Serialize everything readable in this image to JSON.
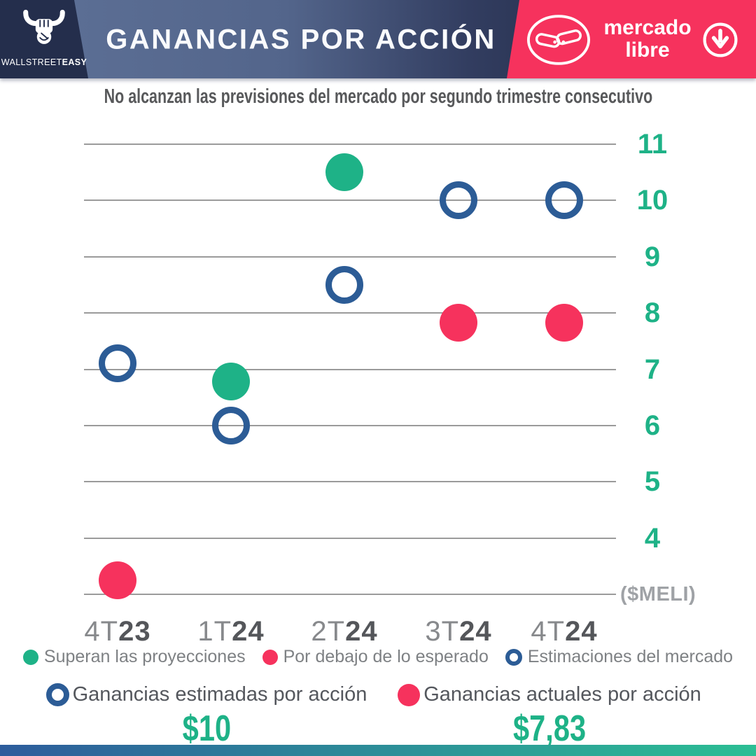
{
  "colors": {
    "green": "#1EB287",
    "pink": "#F6325D",
    "blue": "#2C5C96",
    "navy": "#242E4C",
    "header_pink": "#F6325D"
  },
  "header": {
    "brand_regular": "WALLSTREET",
    "brand_bold": "EASY",
    "title": "GANANCIAS POR ACCIÓN",
    "ml_line1": "mercado",
    "ml_line2": "libre"
  },
  "subtitle": "No alcanzan las previsiones del mercado por segundo trimestre consecutivo",
  "chart_data": {
    "type": "scatter",
    "title": "GANANCIAS POR ACCIÓN",
    "subtitle": "No alcanzan las previsiones del mercado por segundo trimestre consecutivo",
    "ticker": "($MELI)",
    "categories": [
      "4T23",
      "1T24",
      "2T24",
      "3T24",
      "4T24"
    ],
    "category_parts": [
      [
        "4T",
        "23"
      ],
      [
        "1T",
        "24"
      ],
      [
        "2T",
        "24"
      ],
      [
        "3T",
        "24"
      ],
      [
        "4T",
        "24"
      ]
    ],
    "y_ticks": [
      11,
      10,
      9,
      8,
      7,
      6,
      5,
      4
    ],
    "baseline_value": 3,
    "baseline_label": "($MELI)",
    "ylim": [
      3,
      11.5
    ],
    "grid": "horizontal",
    "legend_position": "bottom",
    "series": [
      {
        "name": "Estimaciones del mercado",
        "style": "ring",
        "color": "#2C5C96",
        "values": [
          7.1,
          6.0,
          8.5,
          10.0,
          10.0
        ]
      },
      {
        "name": "Ganancias actuales por acción",
        "style": "dot",
        "values": [
          3.25,
          6.78,
          10.5,
          7.83,
          7.83
        ],
        "result": [
          "miss",
          "beat",
          "beat",
          "miss",
          "miss"
        ],
        "result_colors": {
          "beat": "#1EB287",
          "miss": "#F6325D"
        }
      }
    ]
  },
  "legend": [
    {
      "label": "Superan las proyecciones",
      "swatch": "dot",
      "color": "#1EB287"
    },
    {
      "label": "Por debajo de lo esperado",
      "swatch": "dot",
      "color": "#F6325D"
    },
    {
      "label": "Estimaciones del mercado",
      "swatch": "ring",
      "color": "#2C5C96"
    }
  ],
  "summary": {
    "estimated_label": "Ganancias estimadas por acción",
    "estimated_value": "$10",
    "actual_label": "Ganancias actuales por acción",
    "actual_value": "$7,83"
  }
}
